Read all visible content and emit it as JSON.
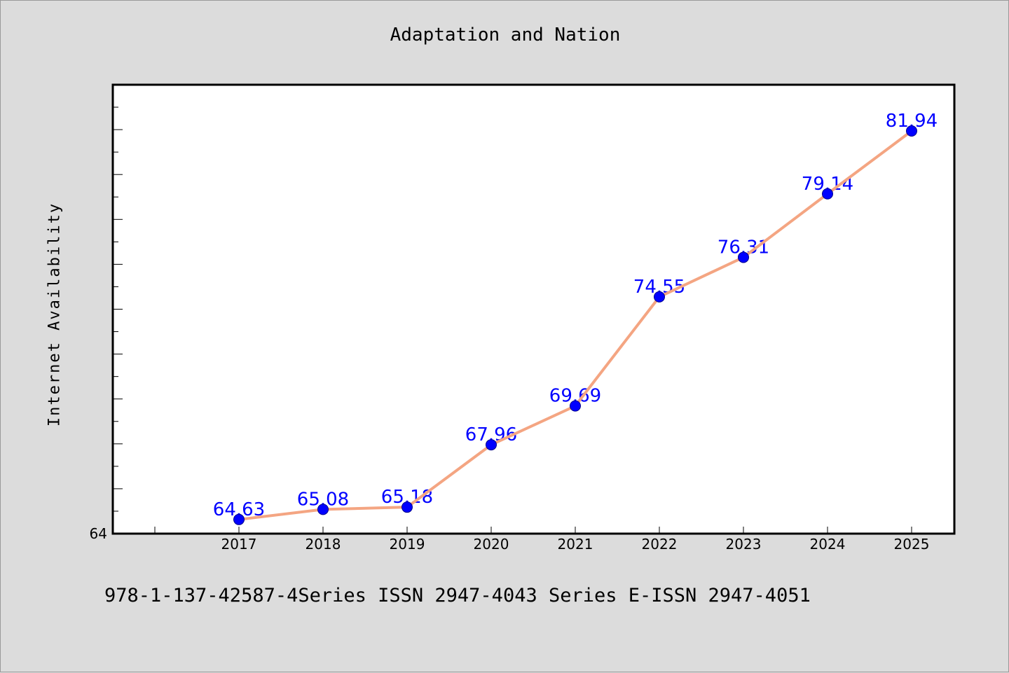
{
  "title": "Adaptation and Nation",
  "footer": "978-1-137-42587-4Series ISSN 2947-4043 Series E-ISSN 2947-4051",
  "colors": {
    "background": "#dcdcdc",
    "plot_background": "#ffffff",
    "line": "#f4a582",
    "marker": "#0000ff",
    "data_label": "#0000ff"
  },
  "chart_data": {
    "type": "line",
    "title": "Adaptation and Nation",
    "xlabel": "",
    "ylabel": "Internet Availability",
    "categories": [
      "2017",
      "2018",
      "2019",
      "2020",
      "2021",
      "2022",
      "2023",
      "2024",
      "2025"
    ],
    "series": [
      {
        "values": [
          64.63,
          65.08,
          65.18,
          67.96,
          69.69,
          74.55,
          76.31,
          79.14,
          81.94
        ],
        "color": "#f4a582",
        "marker_color": "#0000ff"
      }
    ],
    "data_labels": [
      "64.63",
      "65.08",
      "65.18",
      "67.96",
      "69.69",
      "74.55",
      "76.31",
      "79.14",
      "81.94"
    ],
    "y_tick_labels": [
      "64"
    ],
    "ylim": [
      64,
      84
    ],
    "grid": false,
    "legend": "none"
  }
}
